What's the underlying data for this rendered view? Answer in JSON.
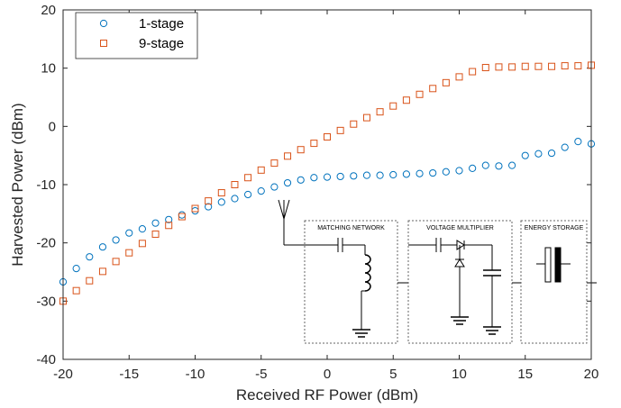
{
  "chart_data": {
    "type": "scatter",
    "xlabel": "Received RF Power (dBm)",
    "ylabel": "Harvested Power (dBm)",
    "xlim": [
      -20,
      20
    ],
    "ylim": [
      -40,
      20
    ],
    "xticks": [
      "-20",
      "-15",
      "-10",
      "-5",
      "0",
      "5",
      "10",
      "15",
      "20"
    ],
    "yticks": [
      "-40",
      "-30",
      "-20",
      "-10",
      "0",
      "10",
      "20"
    ],
    "grid": false,
    "legend_position": "top-left",
    "x": [
      -20,
      -19,
      -18,
      -17,
      -16,
      -15,
      -14,
      -13,
      -12,
      -11,
      -10,
      -9,
      -8,
      -7,
      -6,
      -5,
      -4,
      -3,
      -2,
      -1,
      0,
      1,
      2,
      3,
      4,
      5,
      6,
      7,
      8,
      9,
      10,
      11,
      12,
      13,
      14,
      15,
      16,
      17,
      18,
      19,
      20
    ],
    "series": [
      {
        "name": "1-stage",
        "marker": "circle",
        "color": "#0072BD",
        "values": [
          -26.7,
          -24.4,
          -22.4,
          -20.7,
          -19.5,
          -18.3,
          -17.6,
          -16.6,
          -16.0,
          -15.2,
          -14.5,
          -13.8,
          -13.0,
          -12.4,
          -11.7,
          -11.1,
          -10.4,
          -9.7,
          -9.2,
          -8.8,
          -8.7,
          -8.6,
          -8.5,
          -8.4,
          -8.4,
          -8.3,
          -8.2,
          -8.1,
          -8.0,
          -7.8,
          -7.6,
          -7.2,
          -6.7,
          -6.8,
          -6.7,
          -5.0,
          -4.7,
          -4.6,
          -3.6,
          -2.6,
          -3.0
        ]
      },
      {
        "name": "9-stage",
        "marker": "square",
        "color": "#D95319",
        "values": [
          -30.0,
          -28.2,
          -26.5,
          -24.9,
          -23.2,
          -21.7,
          -20.1,
          -18.5,
          -17.0,
          -15.5,
          -14.1,
          -12.8,
          -11.4,
          -10.0,
          -8.8,
          -7.5,
          -6.3,
          -5.1,
          -4.0,
          -2.9,
          -1.8,
          -0.7,
          0.4,
          1.5,
          2.5,
          3.5,
          4.5,
          5.5,
          6.5,
          7.5,
          8.5,
          9.4,
          10.1,
          10.2,
          10.2,
          10.3,
          10.3,
          10.3,
          10.4,
          10.4,
          10.5
        ]
      }
    ]
  },
  "inset": {
    "matching_label": "MATCHING NETWORK",
    "multiplier_label": "VOLTAGE MULTIPLIER",
    "storage_label": "ENERGY STORAGE"
  }
}
